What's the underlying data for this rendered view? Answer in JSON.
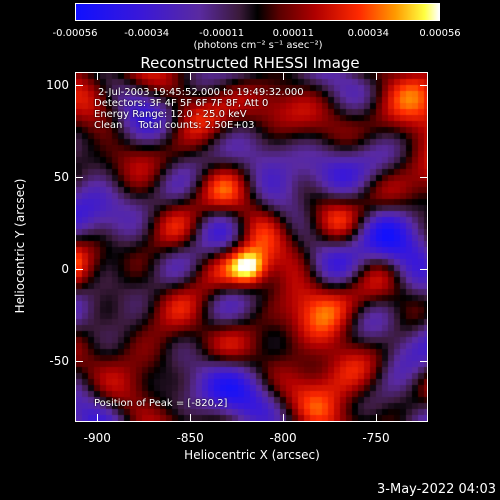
{
  "colorbar": {
    "ticks": [
      "-0.00056",
      "-0.00034",
      "-0.00011",
      "0.00011",
      "0.00034",
      "0.00056"
    ],
    "tick_values": [
      -0.00056,
      -0.00034,
      -0.00011,
      0.00011,
      0.00034,
      0.00056
    ],
    "unit_label": "(photons cm⁻² s⁻¹ asec⁻²)"
  },
  "title": "Reconstructed RHESSI Image",
  "info": {
    "time": "2-Jul-2003 19:45:52.000 to 19:49:32.000",
    "detectors": "Detectors: 3F 4F 5F 6F 7F 8F, Att 0",
    "energy": "Energy Range: 12.0 - 25.0 keV",
    "clean": "Clean     Total counts: 2.50E+03",
    "peak": "Position of Peak = [-820,2]"
  },
  "footer": {
    "date": "3-May-2022 04:03"
  },
  "chart_data": {
    "type": "heatmap",
    "title": "Reconstructed RHESSI Image",
    "xlabel": "Heliocentric X (arcsec)",
    "ylabel": "Heliocentric Y (arcsec)",
    "xlim": [
      -912,
      -722
    ],
    "ylim": [
      -83,
      107
    ],
    "x_ticks": [
      "-900",
      "-850",
      "-800",
      "-750"
    ],
    "x_tick_values": [
      -900,
      -850,
      -800,
      -750
    ],
    "y_ticks": [
      "100",
      "50",
      "0",
      "-50"
    ],
    "y_tick_values": [
      100,
      50,
      0,
      -50
    ],
    "colorbar_range": [
      -0.00056,
      0.00056
    ],
    "peak": {
      "x": -820,
      "y": 2
    },
    "colormap": [
      "#1010ff",
      "#5a2aa0",
      "#000000",
      "#b00000",
      "#ff2a00",
      "#ff9a00",
      "#ffff40",
      "#ffffff"
    ]
  }
}
